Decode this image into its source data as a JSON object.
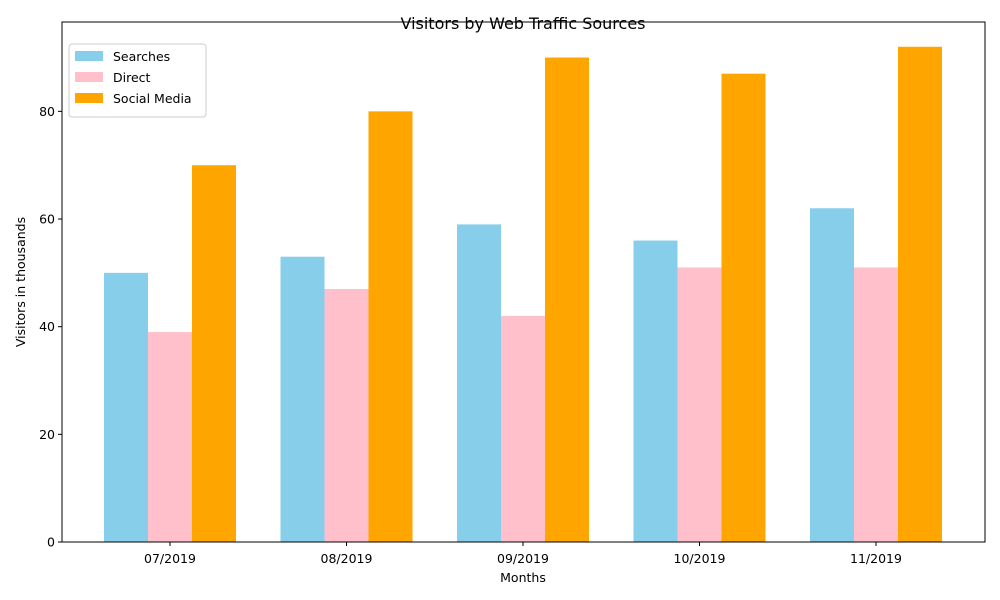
{
  "chart_data": {
    "type": "bar",
    "title": "Visitors by Web Traffic Sources",
    "xlabel": "Months",
    "ylabel": "Visitors in thousands",
    "categories": [
      "07/2019",
      "08/2019",
      "09/2019",
      "10/2019",
      "11/2019"
    ],
    "series": [
      {
        "name": "Searches",
        "color": "#87ceeb",
        "values": [
          50,
          53,
          59,
          56,
          62
        ]
      },
      {
        "name": "Direct",
        "color": "#ffc0cb",
        "values": [
          39,
          47,
          42,
          51,
          51
        ]
      },
      {
        "name": "Social Media",
        "color": "#ffa500",
        "values": [
          70,
          80,
          90,
          87,
          92
        ]
      }
    ],
    "ylim": [
      0,
      96.6
    ],
    "yticks": [
      0,
      20,
      40,
      60,
      80
    ],
    "grid": false,
    "legend": "top-left"
  }
}
